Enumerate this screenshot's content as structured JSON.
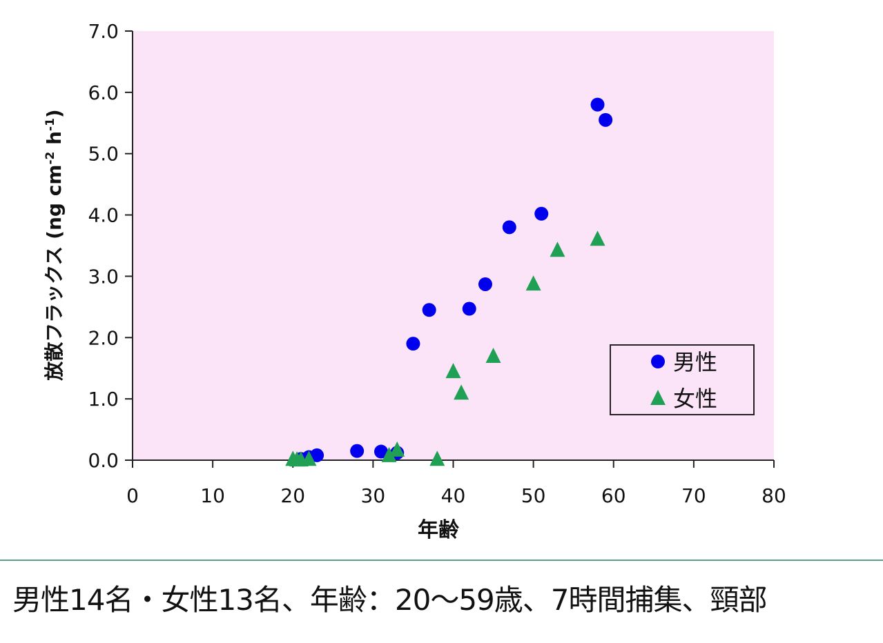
{
  "chart_data": {
    "type": "scatter",
    "title": "",
    "xlabel": "年齢",
    "ylabel": "放散フラックス (ng cm-2 h-1)",
    "ylabel_main": "放散フラックス",
    "ylabel_unit": "(ng cm",
    "ylabel_sup1": "-2",
    "ylabel_mid": " h",
    "ylabel_sup2": "-1",
    "ylabel_end": ")",
    "xlim": [
      0,
      80
    ],
    "ylim": [
      0.0,
      7.0
    ],
    "x_ticks": [
      "0",
      "10",
      "20",
      "30",
      "40",
      "50",
      "60",
      "70",
      "80"
    ],
    "y_ticks": [
      "0.0",
      "1.0",
      "2.0",
      "3.0",
      "4.0",
      "5.0",
      "6.0",
      "7.0"
    ],
    "grid": false,
    "plot_background": "#fce4f8",
    "legend_position": "lower right (inside)",
    "series": [
      {
        "name": "男性",
        "marker": "circle",
        "color": "#0000ee",
        "points": [
          [
            21,
            0.02
          ],
          [
            22,
            0.05
          ],
          [
            23,
            0.08
          ],
          [
            28,
            0.15
          ],
          [
            31,
            0.14
          ],
          [
            33,
            0.12
          ],
          [
            35,
            1.9
          ],
          [
            37,
            2.45
          ],
          [
            42,
            2.47
          ],
          [
            44,
            2.87
          ],
          [
            47,
            3.8
          ],
          [
            51,
            4.02
          ],
          [
            58,
            5.8
          ],
          [
            59,
            5.55
          ]
        ]
      },
      {
        "name": "女性",
        "marker": "triangle",
        "color": "#1fa055",
        "points": [
          [
            20,
            0.02
          ],
          [
            20.5,
            0.01
          ],
          [
            21,
            0.01
          ],
          [
            22,
            0.02
          ],
          [
            32,
            0.08
          ],
          [
            33,
            0.17
          ],
          [
            38,
            0.02
          ],
          [
            40,
            1.45
          ],
          [
            41,
            1.1
          ],
          [
            45,
            1.7
          ],
          [
            50,
            2.88
          ],
          [
            53,
            3.43
          ],
          [
            58,
            3.61
          ]
        ]
      }
    ]
  },
  "caption": "男性14名・女性13名、年齢：20～59歳、7時間捕集、頸部"
}
